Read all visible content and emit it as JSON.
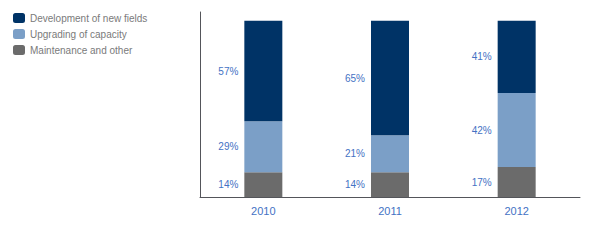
{
  "chart_data": {
    "type": "bar",
    "stacked": true,
    "categories": [
      "2010",
      "2011",
      "2012"
    ],
    "series": [
      {
        "name": "Maintenance and other",
        "color": "#6b6b6b",
        "values": [
          14,
          14,
          17
        ],
        "value_labels": [
          "14%",
          "14%",
          "17%"
        ]
      },
      {
        "name": "Upgrading of capacity",
        "color": "#7b9fc7",
        "values": [
          29,
          21,
          42
        ],
        "value_labels": [
          "29%",
          "21%",
          "42%"
        ]
      },
      {
        "name": "Development of new fields",
        "color": "#003366",
        "values": [
          57,
          65,
          41
        ],
        "value_labels": [
          "57%",
          "65%",
          "41%"
        ]
      }
    ],
    "ylim": [
      0,
      105
    ],
    "data_labels": true,
    "tick_labels": "x",
    "grid": false,
    "legend": "upper left"
  }
}
